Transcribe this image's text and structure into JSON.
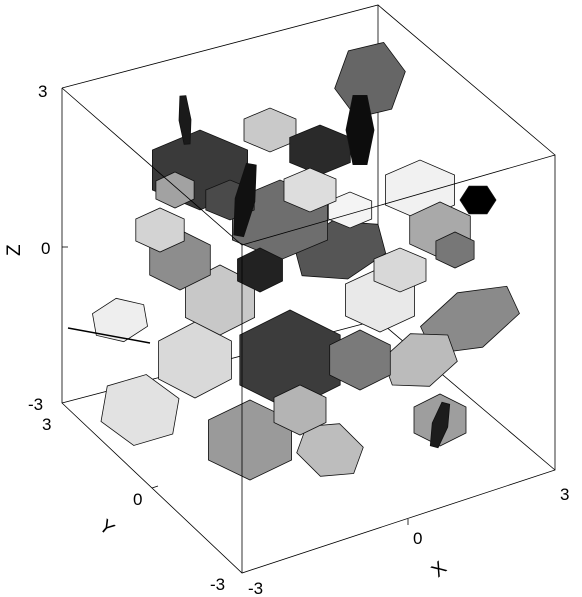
{
  "figure": {
    "axes": {
      "x": {
        "label": "X",
        "ticks": [
          "-3",
          "0",
          "3"
        ]
      },
      "y": {
        "label": "Y",
        "ticks": [
          "-3",
          "0",
          "3"
        ]
      },
      "z": {
        "label": "Z",
        "ticks": [
          "-3",
          "0",
          "3"
        ]
      }
    },
    "range": [
      -3,
      3
    ],
    "grayscale_shading": true
  }
}
